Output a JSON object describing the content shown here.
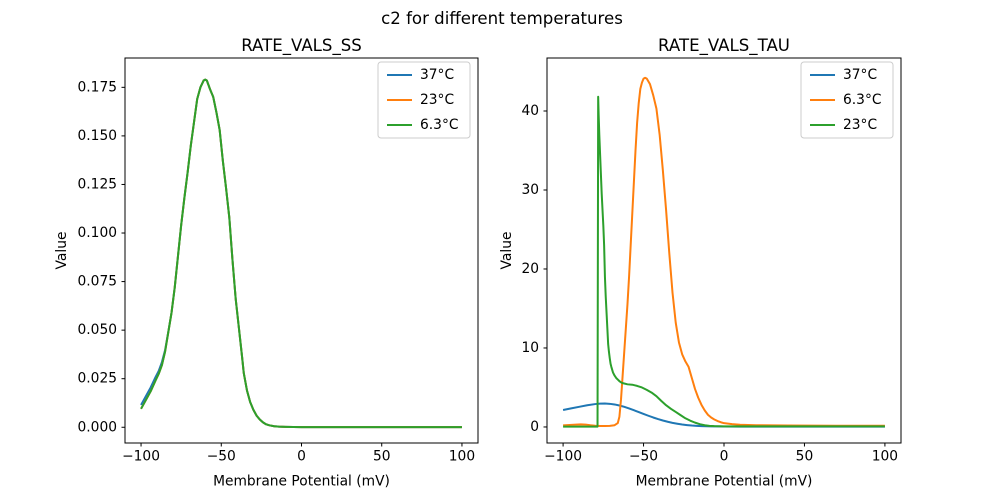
{
  "figure": {
    "title": "c2 for different temperatures",
    "background": "#ffffff"
  },
  "palette": {
    "blue": "#1f77b4",
    "orange": "#ff7f0e",
    "green": "#2ca02c"
  },
  "chart_data": [
    {
      "type": "line",
      "title": "RATE_VALS_SS",
      "xlabel": "Membrane Potential (mV)",
      "ylabel": "Value",
      "xlim": [
        -110,
        110
      ],
      "ylim": [
        -0.0081,
        0.1901
      ],
      "xticks": [
        -100,
        -50,
        0,
        50,
        100
      ],
      "xtick_labels": [
        "−100",
        "−50",
        "0",
        "50",
        "100"
      ],
      "yticks": [
        0,
        0.025,
        0.05,
        0.075,
        0.1,
        0.125,
        0.15,
        0.175
      ],
      "ytick_labels": [
        "0.000",
        "0.025",
        "0.050",
        "0.075",
        "0.100",
        "0.125",
        "0.150",
        "0.175"
      ],
      "grid": false,
      "legend_position": "upper right",
      "series": [
        {
          "label": "37°C",
          "color": "#1f77b4",
          "x": [
            -100,
            -97,
            -94,
            -91,
            -89,
            -87,
            -85,
            -83,
            -81,
            -79,
            -77,
            -75,
            -73,
            -71,
            -69,
            -67,
            -65,
            -63,
            -61,
            -60,
            -59,
            -57,
            -55,
            -53,
            -51,
            -49,
            -47,
            -45,
            -43,
            -41,
            -39,
            -37,
            -36,
            -34,
            -32,
            -30,
            -28,
            -26,
            -24,
            -22,
            -20,
            -17,
            -14,
            -10,
            0,
            20,
            50,
            100
          ],
          "y": [
            0.0115,
            0.016,
            0.0205,
            0.0258,
            0.029,
            0.0335,
            0.0398,
            0.0492,
            0.059,
            0.072,
            0.088,
            0.104,
            0.118,
            0.131,
            0.145,
            0.157,
            0.169,
            0.175,
            0.1785,
            0.179,
            0.1785,
            0.174,
            0.17,
            0.162,
            0.153,
            0.137,
            0.123,
            0.108,
            0.086,
            0.066,
            0.051,
            0.036,
            0.028,
            0.019,
            0.013,
            0.009,
            0.006,
            0.004,
            0.0025,
            0.0015,
            0.001,
            0.0005,
            0.0003,
            0.0002,
            0.0001,
            0.0001,
            0.0001,
            0.0001
          ]
        },
        {
          "label": "23°C",
          "color": "#ff7f0e",
          "x": [
            -100,
            -97,
            -94,
            -91,
            -89,
            -87,
            -85,
            -83,
            -81,
            -79,
            -77,
            -75,
            -73,
            -71,
            -69,
            -67,
            -65,
            -63,
            -61,
            -60,
            -59,
            -57,
            -55,
            -53,
            -51,
            -49,
            -47,
            -45,
            -43,
            -41,
            -39,
            -37,
            -36,
            -34,
            -32,
            -30,
            -28,
            -26,
            -24,
            -22,
            -20,
            -17,
            -14,
            -10,
            0,
            20,
            50,
            100
          ],
          "y": [
            0.0095,
            0.014,
            0.0185,
            0.024,
            0.0275,
            0.032,
            0.039,
            0.049,
            0.059,
            0.072,
            0.088,
            0.104,
            0.118,
            0.131,
            0.145,
            0.157,
            0.169,
            0.175,
            0.1785,
            0.179,
            0.1785,
            0.174,
            0.17,
            0.162,
            0.153,
            0.137,
            0.123,
            0.108,
            0.086,
            0.066,
            0.051,
            0.036,
            0.028,
            0.019,
            0.013,
            0.009,
            0.006,
            0.004,
            0.0025,
            0.0015,
            0.001,
            0.0005,
            0.0003,
            0.0002,
            0.0001,
            0.0001,
            0.0001,
            0.0001
          ]
        },
        {
          "label": "6.3°C",
          "color": "#2ca02c",
          "x": [
            -100,
            -97,
            -94,
            -91,
            -89,
            -87,
            -85,
            -83,
            -81,
            -79,
            -77,
            -75,
            -73,
            -71,
            -69,
            -67,
            -65,
            -63,
            -61,
            -60,
            -59,
            -57,
            -55,
            -53,
            -51,
            -49,
            -47,
            -45,
            -43,
            -41,
            -39,
            -37,
            -36,
            -34,
            -32,
            -30,
            -28,
            -26,
            -24,
            -22,
            -20,
            -17,
            -14,
            -10,
            0,
            20,
            50,
            100
          ],
          "y": [
            0.0095,
            0.014,
            0.0185,
            0.024,
            0.0275,
            0.032,
            0.039,
            0.049,
            0.059,
            0.072,
            0.088,
            0.104,
            0.118,
            0.131,
            0.145,
            0.157,
            0.169,
            0.175,
            0.1785,
            0.179,
            0.1785,
            0.174,
            0.17,
            0.162,
            0.153,
            0.137,
            0.123,
            0.108,
            0.086,
            0.066,
            0.051,
            0.036,
            0.028,
            0.019,
            0.013,
            0.009,
            0.006,
            0.004,
            0.0025,
            0.0015,
            0.001,
            0.0005,
            0.0003,
            0.0002,
            0.0001,
            0.0001,
            0.0001,
            0.0001
          ]
        }
      ]
    },
    {
      "type": "line",
      "title": "RATE_VALS_TAU",
      "xlabel": "Membrane Potential (mV)",
      "ylabel": "Value",
      "xlim": [
        -110,
        110
      ],
      "ylim": [
        -2.03,
        46.71
      ],
      "xticks": [
        -100,
        -50,
        0,
        50,
        100
      ],
      "xtick_labels": [
        "−100",
        "−50",
        "0",
        "50",
        "100"
      ],
      "yticks": [
        0,
        10,
        20,
        30,
        40
      ],
      "ytick_labels": [
        "0",
        "10",
        "20",
        "30",
        "40"
      ],
      "grid": false,
      "legend_position": "upper right",
      "series": [
        {
          "label": "37°C",
          "color": "#1f77b4",
          "x": [
            -100,
            -95,
            -90,
            -85,
            -80,
            -77,
            -74,
            -71,
            -68,
            -65,
            -62,
            -59,
            -56,
            -53,
            -50,
            -47,
            -44,
            -41,
            -38,
            -35,
            -32,
            -29,
            -26,
            -23,
            -20,
            -17,
            -14,
            -11,
            -8,
            -5,
            0,
            10,
            30,
            60,
            100
          ],
          "y": [
            2.15,
            2.35,
            2.55,
            2.75,
            2.9,
            2.95,
            2.97,
            2.93,
            2.85,
            2.72,
            2.55,
            2.35,
            2.12,
            1.88,
            1.65,
            1.42,
            1.2,
            1.0,
            0.82,
            0.66,
            0.52,
            0.41,
            0.31,
            0.24,
            0.18,
            0.14,
            0.11,
            0.09,
            0.08,
            0.07,
            0.06,
            0.05,
            0.05,
            0.05,
            0.05
          ]
        },
        {
          "label": "6.3°C",
          "color": "#ff7f0e",
          "x": [
            -100,
            -96,
            -92,
            -89,
            -86,
            -83,
            -80,
            -77,
            -74,
            -71,
            -68,
            -66,
            -65,
            -64,
            -63,
            -62,
            -61,
            -60,
            -59,
            -58,
            -57,
            -56,
            -55,
            -54,
            -53,
            -52,
            -51,
            -50,
            -49,
            -48,
            -46,
            -44,
            -42,
            -40,
            -38,
            -36,
            -34,
            -32,
            -30,
            -28,
            -26,
            -24,
            -22,
            -20,
            -18,
            -16,
            -14,
            -12,
            -10,
            -8,
            -6,
            -4,
            -2,
            0,
            5,
            10,
            20,
            40,
            70,
            100
          ],
          "y": [
            0.2,
            0.25,
            0.3,
            0.33,
            0.3,
            0.22,
            0.16,
            0.13,
            0.12,
            0.14,
            0.22,
            0.5,
            1.3,
            3.5,
            6.5,
            9.5,
            12.5,
            15.5,
            19,
            23,
            27,
            31,
            35,
            38.5,
            41,
            42.8,
            43.6,
            44.1,
            44.2,
            44.1,
            43.4,
            42.0,
            40.3,
            37.0,
            32.5,
            27.5,
            22.0,
            17.0,
            13.2,
            10.7,
            9.2,
            8.3,
            7.6,
            6.2,
            4.8,
            3.7,
            2.8,
            2.1,
            1.55,
            1.2,
            0.95,
            0.75,
            0.6,
            0.48,
            0.36,
            0.28,
            0.22,
            0.18,
            0.16,
            0.15
          ]
        },
        {
          "label": "23°C",
          "color": "#2ca02c",
          "x": [
            -100,
            -95,
            -90,
            -85,
            -80,
            -78.6,
            -78.2,
            -77.9,
            -77.5,
            -77,
            -76.5,
            -76,
            -75.5,
            -75,
            -74.5,
            -74,
            -73.5,
            -73,
            -72.5,
            -72,
            -71.5,
            -71,
            -70.5,
            -70,
            -69,
            -68,
            -67,
            -66,
            -65,
            -64,
            -63,
            -62,
            -60,
            -57,
            -54,
            -51,
            -48,
            -45,
            -42,
            -39,
            -36,
            -33,
            -30,
            -27,
            -24,
            -21,
            -18,
            -15,
            -12,
            -9,
            -6,
            -3,
            0,
            10,
            30,
            60,
            100
          ],
          "y": [
            0.05,
            0.05,
            0.05,
            0.05,
            0.05,
            0.05,
            41.8,
            39.5,
            37.0,
            34.5,
            32.0,
            29.5,
            27.5,
            25.5,
            23.0,
            19.0,
            16.5,
            14.5,
            12.5,
            10.5,
            9.5,
            8.7,
            8.0,
            7.6,
            6.9,
            6.5,
            6.2,
            6.0,
            5.8,
            5.65,
            5.55,
            5.5,
            5.4,
            5.35,
            5.2,
            5.0,
            4.7,
            4.35,
            3.9,
            3.3,
            2.75,
            2.3,
            1.9,
            1.5,
            1.1,
            0.8,
            0.55,
            0.35,
            0.22,
            0.14,
            0.1,
            0.085,
            0.075,
            0.07,
            0.07,
            0.07,
            0.07
          ]
        }
      ]
    }
  ]
}
